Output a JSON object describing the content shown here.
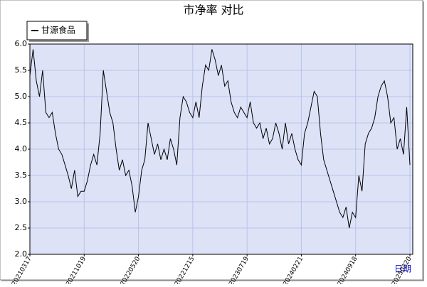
{
  "chart_data": {
    "type": "line",
    "title": "市净率  对比",
    "xlabel": "日期",
    "categories": [
      "20210317",
      null,
      null,
      null,
      null,
      null,
      null,
      null,
      null,
      null,
      null,
      null,
      null,
      null,
      null,
      null,
      null,
      "20211019",
      null,
      null,
      null,
      null,
      null,
      null,
      null,
      null,
      null,
      null,
      null,
      null,
      null,
      null,
      null,
      null,
      "20220520",
      null,
      null,
      null,
      null,
      null,
      null,
      null,
      null,
      null,
      null,
      null,
      null,
      null,
      null,
      null,
      null,
      "20221215",
      null,
      null,
      null,
      null,
      null,
      null,
      null,
      null,
      null,
      null,
      null,
      null,
      null,
      null,
      null,
      null,
      "20230719",
      null,
      null,
      null,
      null,
      null,
      null,
      null,
      null,
      null,
      null,
      null,
      null,
      null,
      null,
      null,
      null,
      "20240221",
      null,
      null,
      null,
      null,
      null,
      null,
      null,
      null,
      null,
      null,
      null,
      null,
      null,
      null,
      null,
      null,
      "20240918",
      null,
      null,
      null,
      null,
      null,
      null,
      null,
      null,
      null,
      null,
      null,
      null,
      null,
      null,
      null,
      null,
      "20250320"
    ],
    "series": [
      {
        "name": "甘源食品",
        "color": "#000000",
        "values": [
          5.4,
          5.9,
          5.3,
          5.0,
          5.5,
          4.7,
          4.6,
          4.7,
          4.3,
          4.0,
          3.9,
          3.7,
          3.5,
          3.25,
          3.6,
          3.1,
          3.2,
          3.2,
          3.4,
          3.7,
          3.9,
          3.7,
          4.3,
          5.5,
          5.1,
          4.7,
          4.5,
          4.0,
          3.6,
          3.8,
          3.5,
          3.6,
          3.3,
          2.8,
          3.1,
          3.6,
          3.8,
          4.5,
          4.2,
          3.9,
          4.1,
          3.8,
          4.0,
          3.8,
          4.2,
          4.0,
          3.7,
          4.6,
          5.0,
          4.9,
          4.7,
          4.6,
          4.9,
          4.6,
          5.2,
          5.6,
          5.5,
          5.9,
          5.7,
          5.4,
          5.6,
          5.2,
          5.3,
          4.9,
          4.7,
          4.6,
          4.8,
          4.7,
          4.6,
          4.9,
          4.5,
          4.4,
          4.5,
          4.2,
          4.4,
          4.1,
          4.2,
          4.5,
          4.3,
          4.0,
          4.5,
          4.1,
          4.3,
          4.0,
          3.8,
          3.7,
          4.3,
          4.5,
          4.8,
          5.1,
          5.0,
          4.3,
          3.8,
          3.6,
          3.4,
          3.2,
          3.0,
          2.8,
          2.7,
          2.9,
          2.5,
          2.8,
          2.7,
          3.5,
          3.2,
          4.1,
          4.3,
          4.4,
          4.6,
          5.0,
          5.2,
          5.3,
          5.0,
          4.5,
          4.6,
          4.0,
          4.2,
          3.9,
          4.8,
          3.7
        ]
      }
    ],
    "ylim": [
      2,
      6
    ],
    "yticks": [
      {
        "value": 2,
        "label": "2.0"
      },
      2.5,
      {
        "value": 3,
        "label": "3.0"
      },
      3.5,
      {
        "value": 4,
        "label": "4.0"
      },
      4.5,
      {
        "value": 5,
        "label": "5.0"
      },
      5.5,
      {
        "value": 6,
        "label": "6.0"
      }
    ],
    "grid": true,
    "legend": "upper left"
  }
}
